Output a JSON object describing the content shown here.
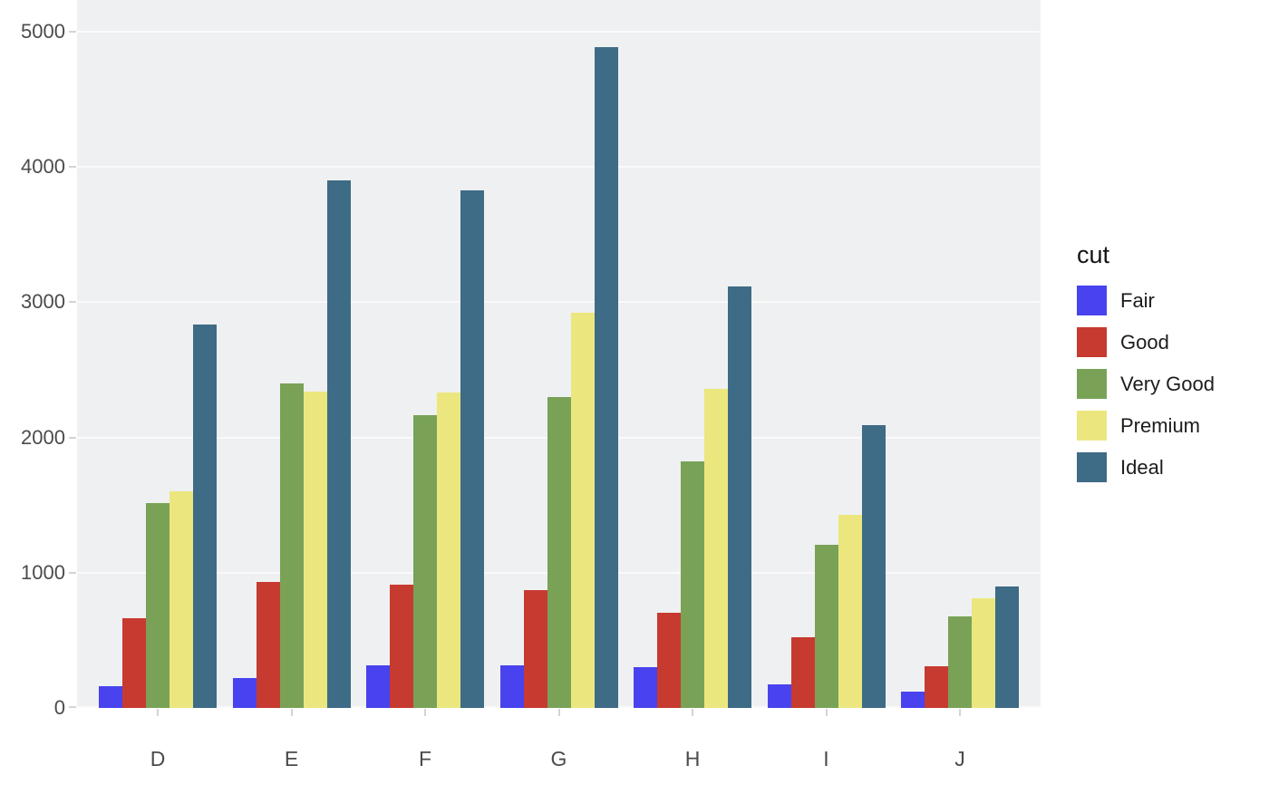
{
  "chart_data": {
    "type": "bar",
    "mode": "grouped",
    "title": "",
    "xlabel": "",
    "ylabel": "",
    "categories": [
      "D",
      "E",
      "F",
      "G",
      "H",
      "I",
      "J"
    ],
    "series": [
      {
        "name": "Fair",
        "color": "#4843ee",
        "values": [
          163,
          224,
          312,
          314,
          303,
          175,
          119
        ]
      },
      {
        "name": "Good",
        "color": "#c73a30",
        "values": [
          662,
          933,
          909,
          871,
          702,
          522,
          307
        ]
      },
      {
        "name": "Very Good",
        "color": "#79a257",
        "values": [
          1513,
          2400,
          2164,
          2299,
          1824,
          1204,
          678
        ]
      },
      {
        "name": "Premium",
        "color": "#ebe77e",
        "values": [
          1603,
          2337,
          2331,
          2924,
          2360,
          1428,
          808
        ]
      },
      {
        "name": "Ideal",
        "color": "#3e6b86",
        "values": [
          2834,
          3903,
          3826,
          4884,
          3115,
          2093,
          896
        ]
      }
    ],
    "ylim": [
      0,
      5000
    ],
    "yticks": [
      0,
      1000,
      2000,
      3000,
      4000,
      5000
    ],
    "grid": true,
    "legend_title": "cut",
    "legend_position": "right",
    "panel_background": "#eff0f1",
    "gridline_color": "#fafafa",
    "axis_text_color": "#4b4b4b"
  }
}
